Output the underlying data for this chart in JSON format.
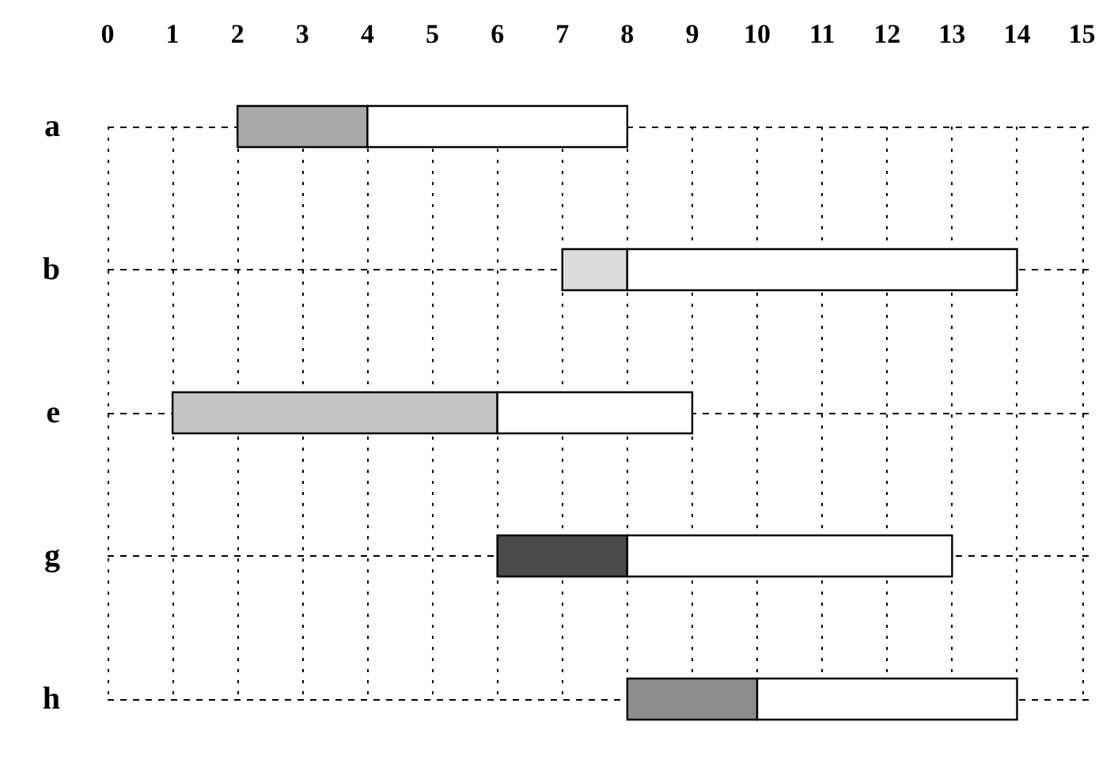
{
  "chart_data": {
    "type": "bar",
    "orientation": "horizontal",
    "categories": [
      "a",
      "b",
      "e",
      "g",
      "h"
    ],
    "series": [
      {
        "colors": [
          "#a8a8a8",
          "#dcdcdc",
          "#c4c4c4",
          "#4a4a4a",
          "#8c8c8c"
        ],
        "base": [
          2,
          7,
          1,
          6,
          8
        ],
        "values": [
          2,
          1,
          5,
          2,
          2
        ]
      },
      {
        "color": "#ffffff",
        "base": [
          4,
          8,
          6,
          8,
          10
        ],
        "values": [
          4,
          6,
          3,
          5,
          4
        ]
      }
    ],
    "xlim": [
      0,
      15.2
    ],
    "xticks": [
      0,
      1,
      2,
      3,
      4,
      5,
      6,
      7,
      8,
      9,
      10,
      11,
      12,
      13,
      14,
      15
    ],
    "grid": true
  }
}
